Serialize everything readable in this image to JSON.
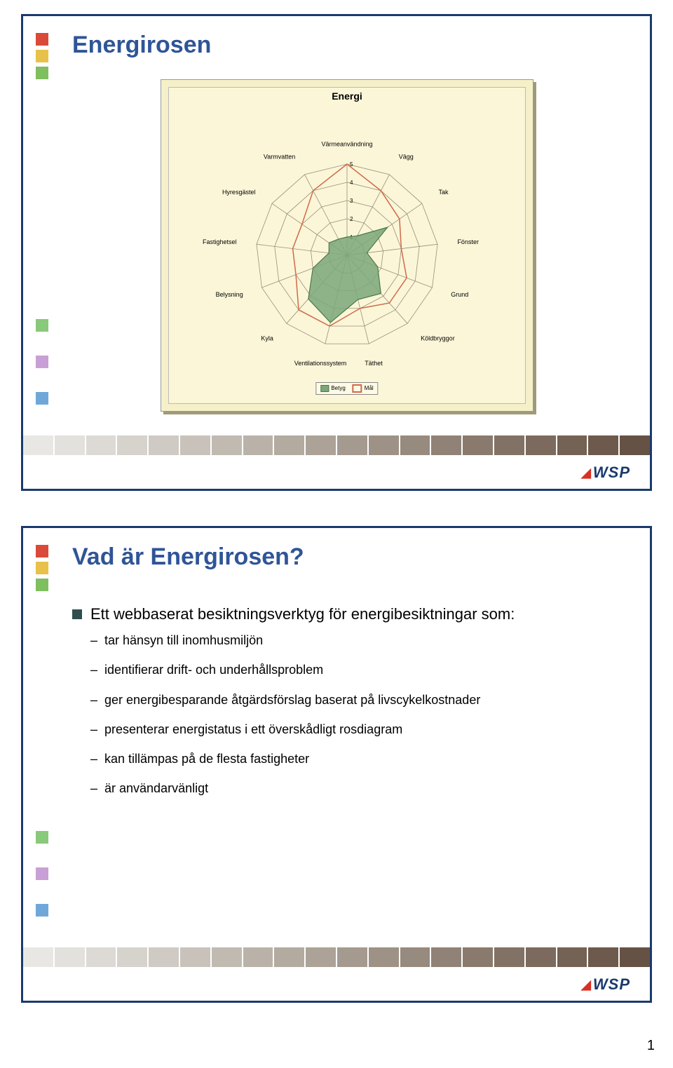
{
  "page_number": "1",
  "logo_text": "WSP",
  "footer_colors": [
    "#e9e7e3",
    "#e3e1dd",
    "#ddd9d4",
    "#d6d2cc",
    "#cfcac3",
    "#c8c2ba",
    "#c1bab1",
    "#bab2a8",
    "#b3aaa0",
    "#aca297",
    "#a59a8f",
    "#9e9286",
    "#978a7e",
    "#908276",
    "#897a6d",
    "#827265",
    "#7b6a5d",
    "#746254",
    "#6d5a4c",
    "#665244"
  ],
  "slide1": {
    "title": "Energirosen",
    "side_top": [
      "#d94a3a",
      "#e8c14a",
      "#7fbf5f"
    ],
    "side_lower": [
      "#89c97a",
      "#c9a0d6",
      "#6fa8d8"
    ],
    "chart": {
      "title": "Energi",
      "bg_outer": "#f5f0c8",
      "bg_inner": "#fbf6d8",
      "axes": [
        "Värmeanvändning",
        "Vägg",
        "Tak",
        "Fönster",
        "Grund",
        "Köldbryggor",
        "Täthet",
        "Ventilationssystem",
        "Kyla",
        "Belysning",
        "Fastighetsel",
        "Hyresgästel",
        "Varmvatten"
      ],
      "rings": 5,
      "max": 5,
      "series1": {
        "name": "Betyg",
        "color_fill": "#7ba77b",
        "color_line": "#4a7a4a",
        "values": [
          1.0,
          1.2,
          2.7,
          1.1,
          1.8,
          2.8,
          2.5,
          3.8,
          3.2,
          2.0,
          1.0,
          1.2,
          1.0
        ]
      },
      "series2": {
        "name": "Mål",
        "color_line": "#d06a4a",
        "values": [
          5,
          4,
          3.5,
          3,
          3.5,
          3.5,
          3,
          4,
          4,
          3,
          3,
          3,
          4
        ]
      },
      "grid_color": "#9a8f7a",
      "axis_line_color": "#9a8f7a"
    }
  },
  "slide2": {
    "title": "Vad är Energirosen?",
    "side_top": [
      "#d94a3a",
      "#e8c14a",
      "#7fbf5f"
    ],
    "side_lower": [
      "#89c97a",
      "#c9a0d6",
      "#6fa8d8"
    ],
    "main_bullet": "Ett webbaserat besiktningsverktyg för energibesiktningar som:",
    "subs": [
      "tar hänsyn till inomhusmiljön",
      "identifierar drift- och underhållsproblem",
      "ger energibesparande åtgärdsförslag baserat på livscykelkostnader",
      "presenterar energistatus i ett överskådligt rosdiagram",
      "kan tillämpas på de flesta fastigheter",
      "är användarvänligt"
    ]
  }
}
